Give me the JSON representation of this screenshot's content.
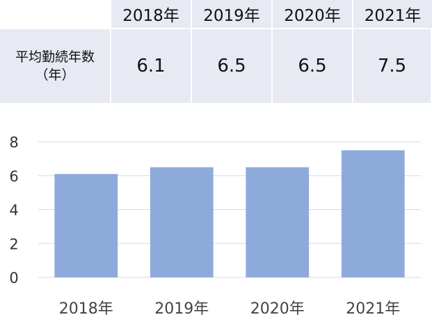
{
  "table": {
    "header": [
      "",
      "2018年",
      "2019年",
      "2020年",
      "2021年"
    ],
    "row_label_line1": "平均勤続年数",
    "row_label_line2": "（年）",
    "values": [
      "6.1",
      "6.5",
      "6.5",
      "7.5"
    ]
  },
  "chart_data": {
    "type": "bar",
    "categories": [
      "2018年",
      "2019年",
      "2020年",
      "2021年"
    ],
    "values": [
      6.1,
      6.5,
      6.5,
      7.5
    ],
    "title": "",
    "xlabel": "",
    "ylabel": "",
    "ylim": [
      0,
      8
    ],
    "yticks": [
      "0",
      "2",
      "4",
      "6",
      "8"
    ],
    "grid": true,
    "bar_color": "#8eaadb",
    "grid_color": "#d9d9d9"
  }
}
